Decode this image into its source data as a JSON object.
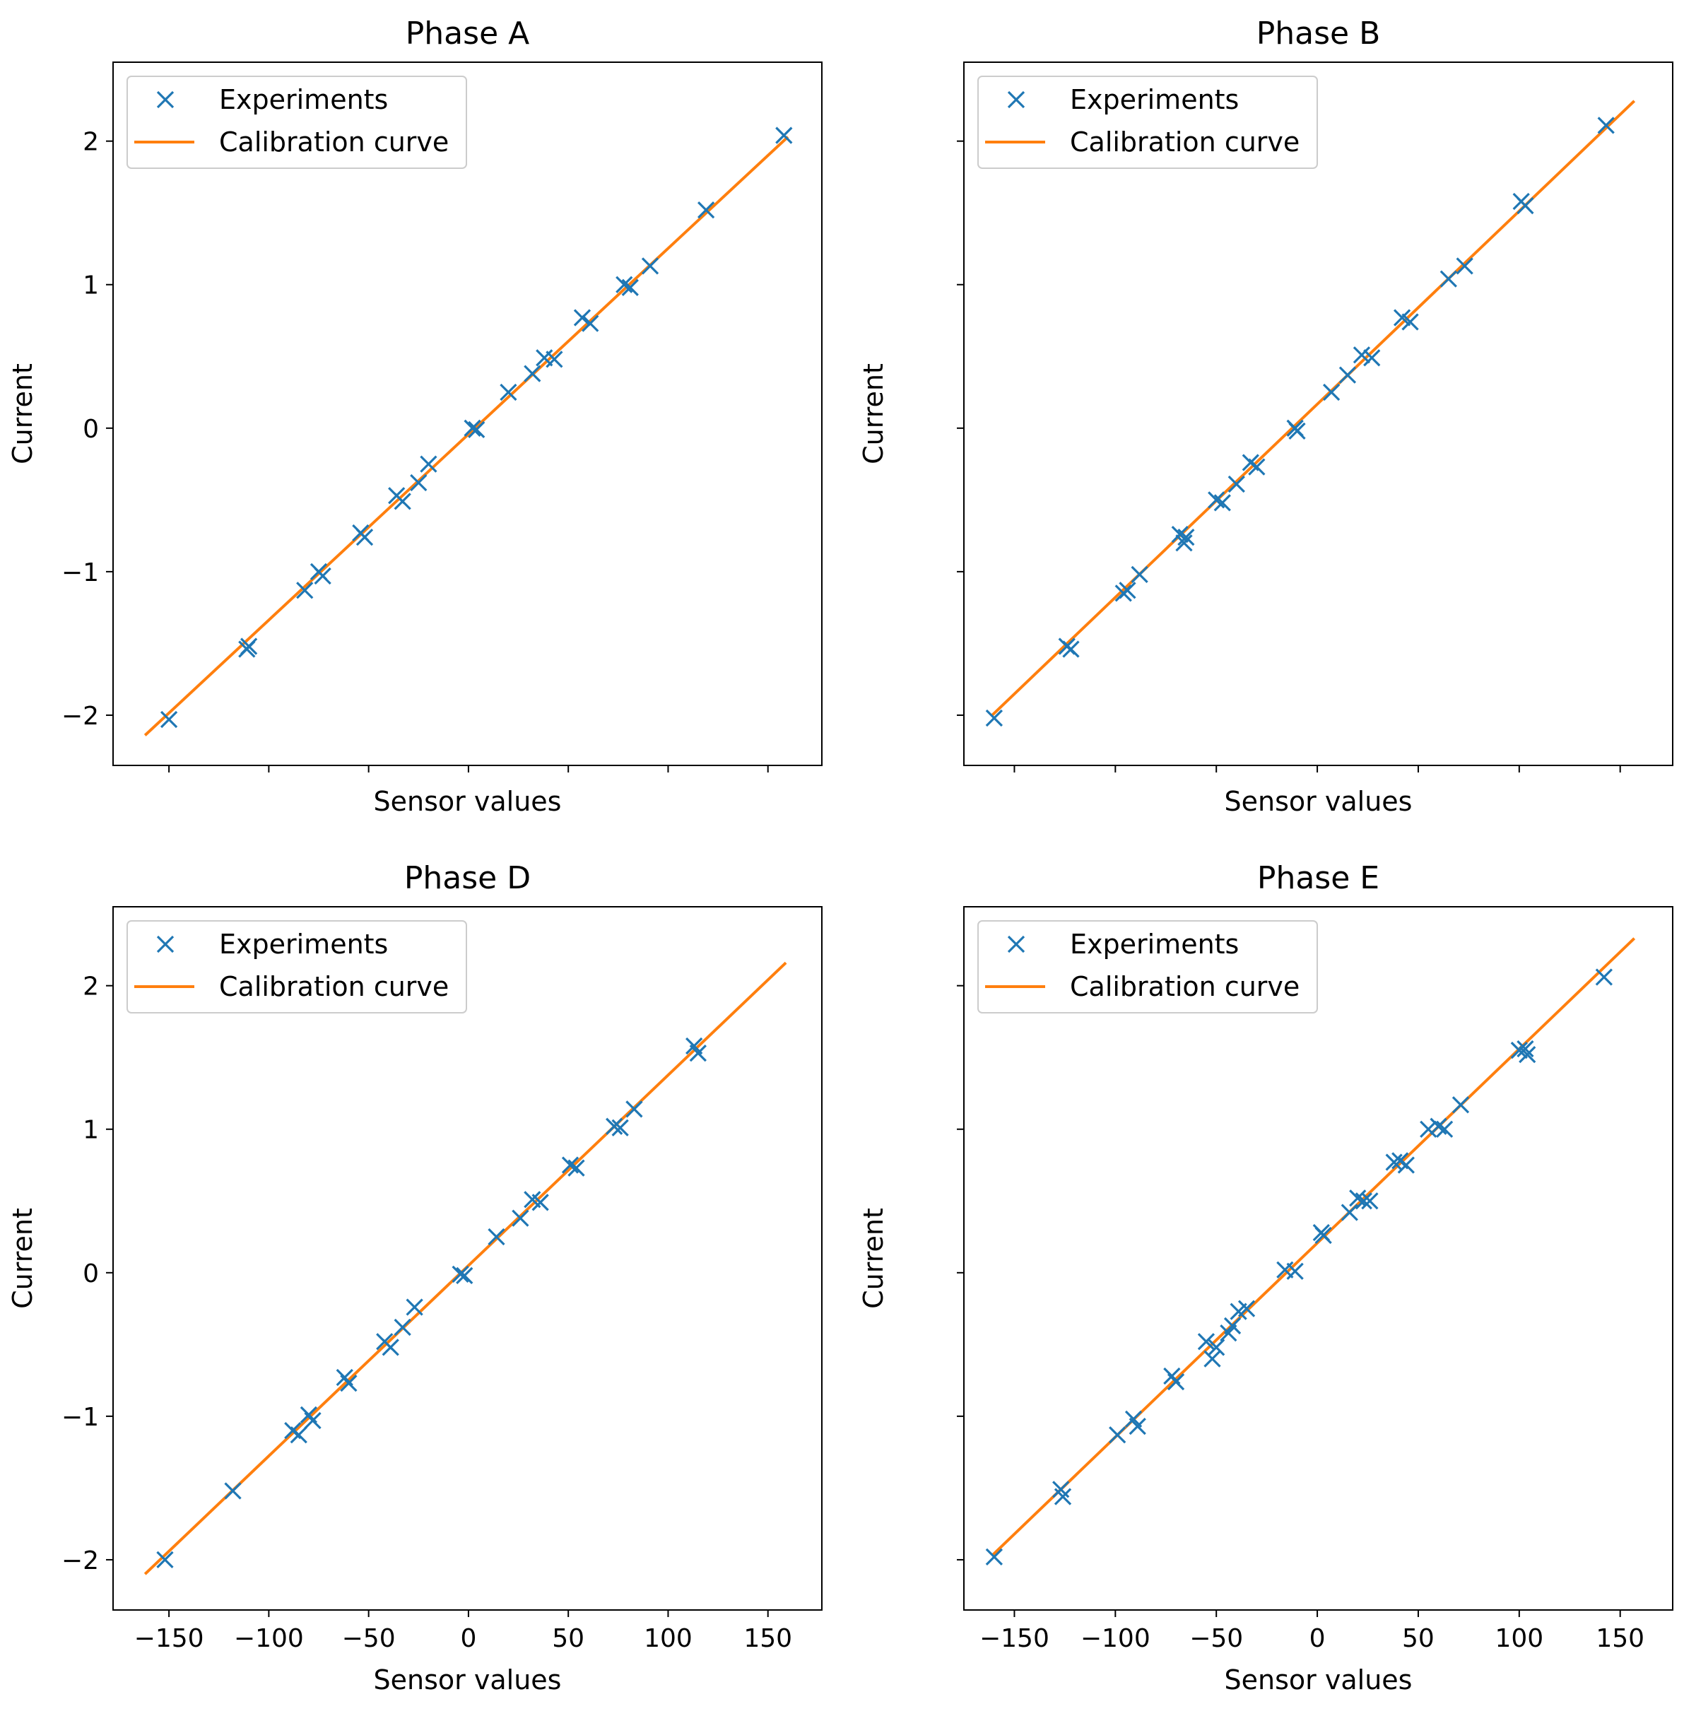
{
  "chart_data": [
    {
      "type": "scatter",
      "title": "Phase A",
      "xlabel": "Sensor values",
      "ylabel": "Current",
      "xlim": [
        -178,
        177
      ],
      "ylim": [
        -2.35,
        2.55
      ],
      "xticks": [
        -150,
        -100,
        -50,
        0,
        50,
        100,
        150
      ],
      "xtick_labels_shown": false,
      "yticks": [
        -2,
        -1,
        0,
        1,
        2
      ],
      "ytick_labels": [
        "−2",
        "−1",
        "0",
        "1",
        "2"
      ],
      "ytick_labels_shown": true,
      "legend": {
        "position": "upper-left",
        "entries": [
          "Experiments",
          "Calibration curve"
        ]
      },
      "series": [
        {
          "name": "Experiments",
          "marker": "x",
          "color": "#1f77b4",
          "x": [
            -150,
            -111,
            -110,
            -82,
            -75,
            -73,
            -54,
            -52,
            -36,
            -33,
            -25,
            -20,
            2,
            4,
            20,
            32,
            38,
            43,
            57,
            61,
            78,
            81,
            91,
            119,
            158
          ],
          "y": [
            -2.03,
            -1.54,
            -1.52,
            -1.13,
            -1.0,
            -1.03,
            -0.73,
            -0.76,
            -0.47,
            -0.51,
            -0.38,
            -0.25,
            0.0,
            -0.01,
            0.25,
            0.38,
            0.49,
            0.48,
            0.77,
            0.73,
            1.0,
            0.98,
            1.13,
            1.52,
            2.04
          ]
        },
        {
          "name": "Calibration curve",
          "type": "line",
          "color": "#ff7f0e",
          "x": [
            -162,
            160
          ],
          "y": [
            -2.14,
            2.03
          ]
        }
      ]
    },
    {
      "type": "scatter",
      "title": "Phase B",
      "xlabel": "Sensor values",
      "ylabel": "Current",
      "xlim": [
        -175,
        176
      ],
      "ylim": [
        -2.35,
        2.55
      ],
      "xticks": [
        -150,
        -100,
        -50,
        0,
        50,
        100,
        150
      ],
      "xtick_labels_shown": false,
      "yticks": [
        -2,
        -1,
        0,
        1,
        2
      ],
      "ytick_labels_shown": false,
      "legend": {
        "position": "upper-left",
        "entries": [
          "Experiments",
          "Calibration curve"
        ]
      },
      "series": [
        {
          "name": "Experiments",
          "marker": "x",
          "color": "#1f77b4",
          "x": [
            -160,
            -124,
            -122,
            -96,
            -94,
            -88,
            -68,
            -66,
            -65,
            -50,
            -47,
            -40,
            -33,
            -30,
            -11,
            -10,
            7,
            15,
            22,
            27,
            42,
            46,
            65,
            73,
            101,
            103,
            143
          ],
          "y": [
            -2.02,
            -1.52,
            -1.54,
            -1.15,
            -1.13,
            -1.02,
            -0.74,
            -0.8,
            -0.76,
            -0.5,
            -0.52,
            -0.39,
            -0.24,
            -0.27,
            0.0,
            -0.02,
            0.25,
            0.37,
            0.51,
            0.49,
            0.77,
            0.74,
            1.04,
            1.13,
            1.58,
            1.55,
            2.11
          ]
        },
        {
          "name": "Calibration curve",
          "type": "line",
          "color": "#ff7f0e",
          "x": [
            -161,
            157
          ],
          "y": [
            -2.0,
            2.28
          ]
        }
      ]
    },
    {
      "type": "scatter",
      "title": "Phase D",
      "xlabel": "Sensor values",
      "ylabel": "Current",
      "xlim": [
        -178,
        177
      ],
      "ylim": [
        -2.35,
        2.55
      ],
      "xticks": [
        -150,
        -100,
        -50,
        0,
        50,
        100,
        150
      ],
      "xtick_labels": [
        "−150",
        "−100",
        "−50",
        "0",
        "50",
        "100",
        "150"
      ],
      "xtick_labels_shown": true,
      "yticks": [
        -2,
        -1,
        0,
        1,
        2
      ],
      "ytick_labels": [
        "−2",
        "−1",
        "0",
        "1",
        "2"
      ],
      "ytick_labels_shown": true,
      "legend": {
        "position": "upper-left",
        "entries": [
          "Experiments",
          "Calibration curve"
        ]
      },
      "series": [
        {
          "name": "Experiments",
          "marker": "x",
          "color": "#1f77b4",
          "x": [
            -152,
            -118,
            -88,
            -85,
            -80,
            -78,
            -62,
            -60,
            -42,
            -39,
            -33,
            -27,
            -4,
            -2,
            14,
            26,
            32,
            36,
            51,
            54,
            73,
            76,
            83,
            113,
            115
          ],
          "y": [
            -2.0,
            -1.52,
            -1.1,
            -1.13,
            -0.99,
            -1.03,
            -0.73,
            -0.77,
            -0.48,
            -0.52,
            -0.38,
            -0.24,
            -0.01,
            -0.02,
            0.25,
            0.38,
            0.51,
            0.49,
            0.75,
            0.73,
            1.02,
            1.01,
            1.14,
            1.58,
            1.53
          ]
        },
        {
          "name": "Calibration curve",
          "type": "line",
          "color": "#ff7f0e",
          "x": [
            -162,
            159
          ],
          "y": [
            -2.1,
            2.16
          ]
        }
      ]
    },
    {
      "type": "scatter",
      "title": "Phase E",
      "xlabel": "Sensor values",
      "ylabel": "Current",
      "xlim": [
        -175,
        176
      ],
      "ylim": [
        -2.35,
        2.55
      ],
      "xticks": [
        -150,
        -100,
        -50,
        0,
        50,
        100,
        150
      ],
      "xtick_labels": [
        "−150",
        "−100",
        "−50",
        "0",
        "50",
        "100",
        "150"
      ],
      "xtick_labels_shown": true,
      "yticks": [
        -2,
        -1,
        0,
        1,
        2
      ],
      "ytick_labels_shown": false,
      "legend": {
        "position": "upper-left",
        "entries": [
          "Experiments",
          "Calibration curve"
        ]
      },
      "series": [
        {
          "name": "Experiments",
          "marker": "x",
          "color": "#1f77b4",
          "x": [
            -160,
            -127,
            -126,
            -99,
            -91,
            -89,
            -72,
            -70,
            -55,
            -52,
            -50,
            -44,
            -42,
            -39,
            -35,
            -16,
            -11,
            2,
            3,
            16,
            20,
            23,
            26,
            38,
            41,
            44,
            55,
            60,
            63,
            71,
            100,
            103,
            104,
            142
          ],
          "y": [
            -1.98,
            -1.51,
            -1.56,
            -1.13,
            -1.02,
            -1.07,
            -0.72,
            -0.76,
            -0.48,
            -0.6,
            -0.52,
            -0.42,
            -0.37,
            -0.27,
            -0.25,
            0.02,
            0.01,
            0.28,
            0.26,
            0.42,
            0.52,
            0.5,
            0.5,
            0.77,
            0.78,
            0.75,
            1.0,
            1.02,
            1.0,
            1.17,
            1.55,
            1.56,
            1.52,
            2.06
          ]
        },
        {
          "name": "Calibration curve",
          "type": "line",
          "color": "#ff7f0e",
          "x": [
            -161,
            157
          ],
          "y": [
            -1.97,
            2.33
          ]
        }
      ]
    }
  ]
}
